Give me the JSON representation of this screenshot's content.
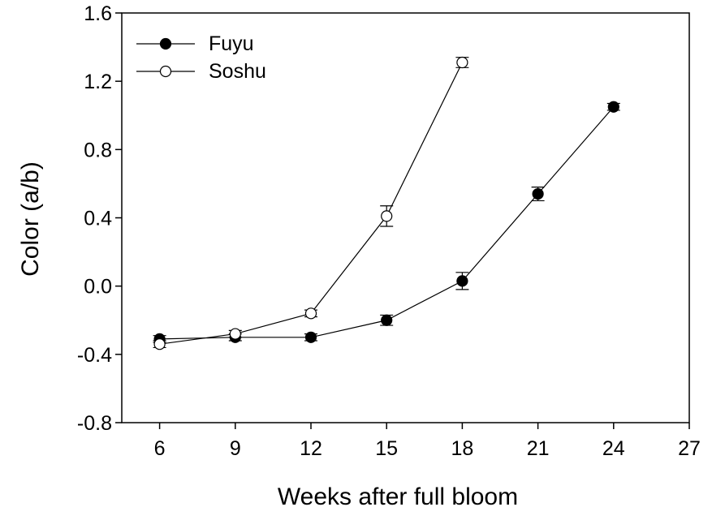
{
  "chart_data": {
    "type": "line",
    "title": "",
    "xlabel": "Weeks after  full bloom",
    "ylabel": "Color (a/b)",
    "xlim": [
      4.5,
      27
    ],
    "ylim": [
      -0.8,
      1.6
    ],
    "xticks": [
      6,
      9,
      12,
      15,
      18,
      21,
      24,
      27
    ],
    "yticks": [
      -0.8,
      -0.4,
      0.0,
      0.4,
      0.8,
      1.2,
      1.6
    ],
    "ytick_labels": [
      "-0.8",
      "-0.4",
      "0.0",
      "0.4",
      "0.8",
      "1.2",
      "1.6"
    ],
    "grid": false,
    "legend_position": "top-left",
    "series": [
      {
        "name": "Fuyu",
        "marker": "filled-circle",
        "color": "#000000",
        "x": [
          6,
          9,
          12,
          15,
          18,
          21,
          24
        ],
        "y": [
          -0.31,
          -0.3,
          -0.3,
          -0.2,
          0.03,
          0.54,
          1.05
        ],
        "error": [
          0.02,
          0.02,
          0.02,
          0.03,
          0.05,
          0.04,
          0.02
        ]
      },
      {
        "name": "Soshu",
        "marker": "open-circle",
        "color": "#000000",
        "x": [
          6,
          9,
          12,
          15,
          18
        ],
        "y": [
          -0.34,
          -0.28,
          -0.16,
          0.41,
          1.31
        ],
        "error": [
          0.02,
          0.02,
          0.02,
          0.06,
          0.03
        ]
      }
    ]
  }
}
